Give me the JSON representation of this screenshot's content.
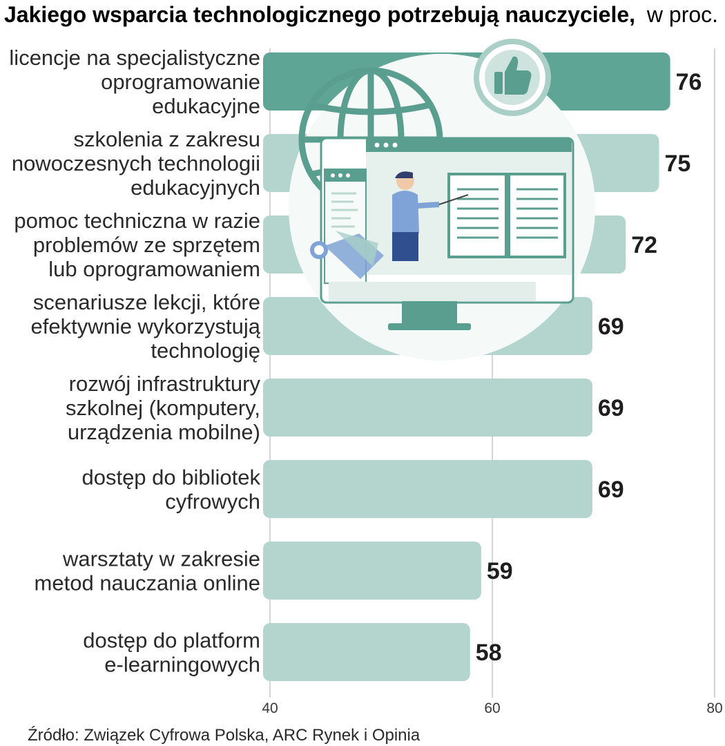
{
  "chart_data": {
    "type": "bar",
    "orientation": "horizontal",
    "title": "Jakiego wsparcia technologicznego potrzebują nauczyciele,",
    "subtitle": "w proc.",
    "categories": [
      [
        "licencje na specjalistyczne",
        "oprogramowanie",
        "edukacyjne"
      ],
      [
        "szkolenia z zakresu",
        "nowoczesnych technologii",
        "edukacyjnych"
      ],
      [
        "pomoc techniczna w razie",
        "problemów ze sprzętem",
        "lub oprogramowaniem"
      ],
      [
        "scenariusze lekcji, które",
        "efektywnie wykorzystują",
        "technologię"
      ],
      [
        "rozwój infrastruktury",
        "szkolnej (komputery,",
        "urządzenia mobilne)"
      ],
      [
        "dostęp do bibliotek",
        "cyfrowych"
      ],
      [
        "warsztaty w zakresie",
        "metod nauczania online"
      ],
      [
        "dostęp do platform",
        "e-learningowych"
      ]
    ],
    "values": [
      76,
      75,
      72,
      69,
      69,
      69,
      59,
      58
    ],
    "value_labels": [
      "76",
      "75",
      "72",
      "69",
      "69",
      "69",
      "59",
      "58"
    ],
    "xlim": [
      40,
      80
    ],
    "xticks": [
      "40",
      "60",
      "80"
    ],
    "grid": true,
    "source": "Źródło: Związek Cyfrowa Polska, ARC Rynek i Opinia"
  },
  "colors": {
    "bar_primary": "#5fa596",
    "bar_secondary": "#b3d5cd",
    "illustration_accent": "#5a9e8f",
    "illustration_blue": "#7fa3d6"
  },
  "illustration": {
    "icons": [
      "globe-icon",
      "thumbs-up-icon",
      "monitor-icon",
      "teacher-icon",
      "open-book-icon",
      "key-icon"
    ]
  }
}
